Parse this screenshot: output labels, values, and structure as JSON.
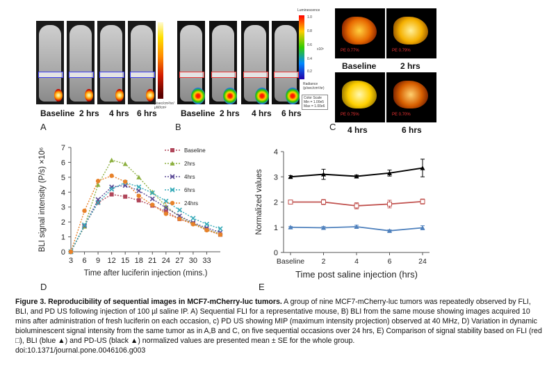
{
  "panels": {
    "a": {
      "letter": "A",
      "labels": [
        "Baseline",
        "2 hrs",
        "4 hrs",
        "6 hrs"
      ],
      "colorbar_unit": "p/sec/cm²/sr/µW/cm²"
    },
    "b": {
      "letter": "B",
      "labels": [
        "Baseline",
        "2 hrs",
        "4 hrs",
        "6 hrs"
      ],
      "colorbar_title": "Luminescence",
      "colorbar_ticks": [
        "1.0",
        "0.8",
        "0.6",
        "0.4",
        "0.2"
      ],
      "colorbar_exp": "x10⁶",
      "colorbar_radiance": "Radiance (p/sec/cm²/sr)",
      "color_scale": [
        "Color Scale",
        "Min = 1.00e5",
        "Max = 1.00e6"
      ]
    },
    "c": {
      "letter": "C",
      "labels": [
        "Baseline",
        "2 hrs",
        "4 hrs",
        "6 hrs"
      ],
      "region_tags": [
        "PE 0.77%",
        "PE 0.79%",
        "PE 0.75%",
        "PE 0.70%"
      ]
    },
    "d": {
      "letter": "D"
    },
    "e": {
      "letter": "E"
    }
  },
  "chart_data": [
    {
      "type": "line",
      "panel": "D",
      "xlabel": "Time after luciferin injection (mins.)",
      "ylabel": "BLI signal intensity (P/s) ×10⁶",
      "x": [
        3,
        6,
        9,
        12,
        15,
        18,
        21,
        24,
        27,
        30,
        33,
        36
      ],
      "xticks": [
        "3",
        "6",
        "9",
        "12",
        "15",
        "18",
        "21",
        "24",
        "27",
        "30",
        "33"
      ],
      "ylim": [
        0,
        7
      ],
      "yticks": [
        "0",
        "1",
        "2",
        "3",
        "4",
        "5",
        "6",
        "7"
      ],
      "legend_position": "top-right",
      "series": [
        {
          "name": "Baseline",
          "color": "#b0465a",
          "marker": "square",
          "values": [
            0,
            1.75,
            3.3,
            3.85,
            3.7,
            3.45,
            3.1,
            2.7,
            2.2,
            1.9,
            1.5,
            1.15
          ]
        },
        {
          "name": "2hrs",
          "color": "#8db040",
          "marker": "triangle",
          "values": [
            0,
            1.7,
            4.5,
            6.15,
            5.9,
            5.0,
            4.0,
            3.05,
            2.35,
            1.9,
            1.5,
            1.2
          ]
        },
        {
          "name": "4hrs",
          "color": "#5b4a96",
          "marker": "x",
          "values": [
            0,
            1.75,
            3.5,
            4.35,
            4.45,
            4.1,
            3.55,
            2.95,
            2.4,
            1.95,
            1.6,
            1.3
          ]
        },
        {
          "name": "6hrs",
          "color": "#36aab8",
          "marker": "x",
          "values": [
            0,
            1.8,
            3.3,
            4.2,
            4.65,
            4.35,
            3.95,
            3.4,
            2.8,
            2.25,
            1.85,
            1.55
          ]
        },
        {
          "name": "24hrs",
          "color": "#e8822a",
          "marker": "circle",
          "values": [
            0,
            2.75,
            4.75,
            5.1,
            4.7,
            3.75,
            3.15,
            2.55,
            2.2,
            1.85,
            1.45,
            1.15
          ]
        }
      ]
    },
    {
      "type": "line",
      "panel": "E",
      "xlabel": "Time post saline injection (hrs)",
      "ylabel": "Normalized values",
      "categories": [
        "Baseline",
        "2",
        "4",
        "6",
        "24"
      ],
      "ylim": [
        0,
        4
      ],
      "yticks": [
        "0",
        "1",
        "2",
        "3",
        "4"
      ],
      "series": [
        {
          "color": "#000000",
          "marker": "triangle",
          "values": [
            3.0,
            3.1,
            3.02,
            3.15,
            3.35
          ],
          "err": [
            0.05,
            0.2,
            0.05,
            0.12,
            0.35
          ]
        },
        {
          "color": "#c0504d",
          "marker": "square",
          "values": [
            2.0,
            2.0,
            1.85,
            1.92,
            2.02
          ],
          "err": [
            0.05,
            0.1,
            0.12,
            0.15,
            0.1
          ]
        },
        {
          "color": "#4f81bd",
          "marker": "triangle",
          "values": [
            1.0,
            0.98,
            1.02,
            0.86,
            0.98
          ],
          "err": [
            0.03,
            0.05,
            0.06,
            0.04,
            0.08
          ]
        }
      ]
    }
  ],
  "caption": {
    "title": "Figure 3. Reproducibility of sequential images in MCF7-mCherry-luc tumors.",
    "body": " A group of nine MCF7-mCherry-luc tumors was repeatedly observed by FLI, BLI, and PD US following injection of 100 µl saline IP. A) Sequential FLI for a representative mouse, B) BLI from the same mouse showing images acquired 10 mins after administration of fresh luciferin on each occasion, c) PD US showing MIP (maximum intensity projection) observed at 40 MHz, D) Variation in dynamic bioluminescent signal intensity from the same tumor as in A,B and C, on five sequential occasions over 24 hrs, E) Comparison of signal stability based on FLI (red □), BLI (blue ▲) and PD-US (black ▲) normalized values are presented mean ± SE for the whole group.",
    "doi": "doi:10.1371/journal.pone.0046106.g003"
  }
}
